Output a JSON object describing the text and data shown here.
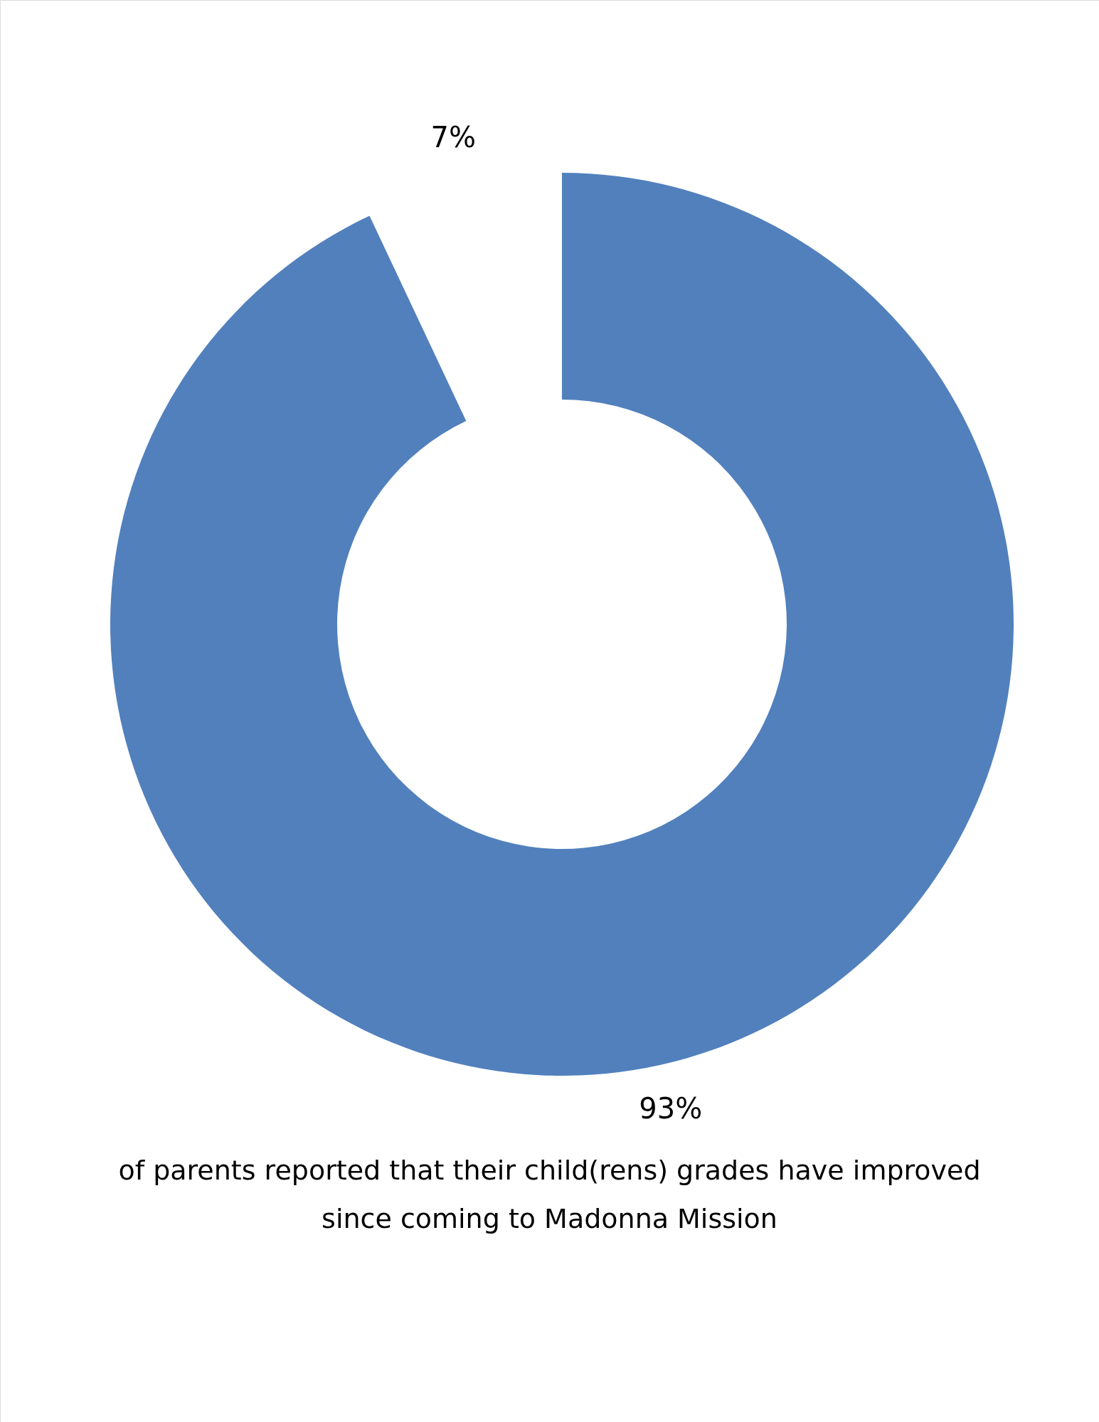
{
  "chart_data": {
    "type": "donut",
    "categories": [
      null,
      null
    ],
    "values": [
      93,
      7
    ],
    "colors": [
      "#5180bd",
      "#ffffff"
    ],
    "value_labels": [
      "93%",
      "7%"
    ],
    "annotations": [
      "of parents reported that their child(rens) grades have improved",
      "since coming to Madonna Mission"
    ]
  }
}
